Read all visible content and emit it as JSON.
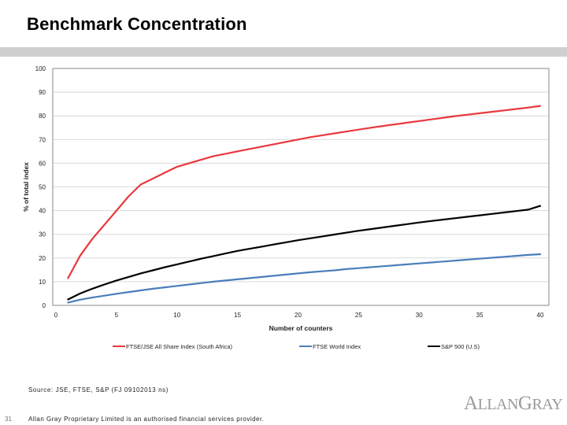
{
  "slide": {
    "title": "Benchmark Concentration",
    "source": "Source: JSE, FTSE, S&P (FJ 09102013 ns)",
    "page_number": "31",
    "disclaimer": "Allan Gray Proprietary Limited is an authorised financial services provider.",
    "logo_text": "ALLANGRAY"
  },
  "colors": {
    "title_bar": "#cfcfcf",
    "plot_border": "#8a8a8a",
    "grid": "#d9d9d9",
    "logo": "#9a9a9a"
  },
  "chart_data": {
    "type": "line",
    "title": "",
    "xlabel": "Number of counters",
    "ylabel": "% of total index",
    "xlim": [
      0,
      40
    ],
    "ylim": [
      0,
      100
    ],
    "xticks": [
      0,
      5,
      10,
      15,
      20,
      25,
      30,
      35,
      40
    ],
    "yticks": [
      0,
      10,
      20,
      30,
      40,
      50,
      60,
      70,
      80,
      90,
      100
    ],
    "grid": "horizontal",
    "legend_position": "bottom",
    "x": [
      1,
      2,
      3,
      4,
      5,
      6,
      7,
      8,
      9,
      10,
      11,
      12,
      13,
      14,
      15,
      16,
      17,
      18,
      19,
      20,
      21,
      22,
      23,
      24,
      25,
      26,
      27,
      28,
      29,
      30,
      31,
      32,
      33,
      34,
      35,
      36,
      37,
      38,
      39,
      40
    ],
    "series": [
      {
        "name": "FTSE/JSE All Share Index (South Africa)",
        "color": "#e8383d",
        "values": [
          11.5,
          21,
          28,
          34,
          40,
          46,
          51,
          53.5,
          56,
          58.5,
          60,
          61.5,
          63,
          64,
          65,
          66,
          67,
          68,
          69,
          70,
          71,
          71.8,
          72.6,
          73.4,
          74.2,
          75,
          75.7,
          76.4,
          77.1,
          77.8,
          78.5,
          79.2,
          79.9,
          80.5,
          81.1,
          81.7,
          82.3,
          82.9,
          83.5,
          84.2
        ]
      },
      {
        "name": "FTSE World Index",
        "color": "#4a7ebb",
        "values": [
          1.2,
          2.4,
          3.3,
          4.1,
          4.9,
          5.6,
          6.3,
          7,
          7.6,
          8.2,
          8.8,
          9.4,
          10,
          10.5,
          11,
          11.5,
          12,
          12.5,
          13,
          13.5,
          14,
          14.4,
          14.8,
          15.3,
          15.7,
          16.1,
          16.5,
          16.9,
          17.3,
          17.7,
          18.1,
          18.5,
          18.9,
          19.3,
          19.7,
          20.1,
          20.5,
          20.9,
          21.3,
          21.6
        ]
      },
      {
        "name": "S&P 500 (U.S)",
        "color": "#000000",
        "values": [
          2.5,
          5,
          7,
          8.8,
          10.5,
          12,
          13.5,
          14.8,
          16.1,
          17.3,
          18.5,
          19.7,
          20.8,
          21.9,
          23,
          23.9,
          24.8,
          25.7,
          26.6,
          27.5,
          28.3,
          29.1,
          29.9,
          30.7,
          31.5,
          32.2,
          32.9,
          33.6,
          34.3,
          35,
          35.6,
          36.2,
          36.8,
          37.4,
          38,
          38.6,
          39.2,
          39.8,
          40.4,
          42
        ]
      }
    ]
  }
}
